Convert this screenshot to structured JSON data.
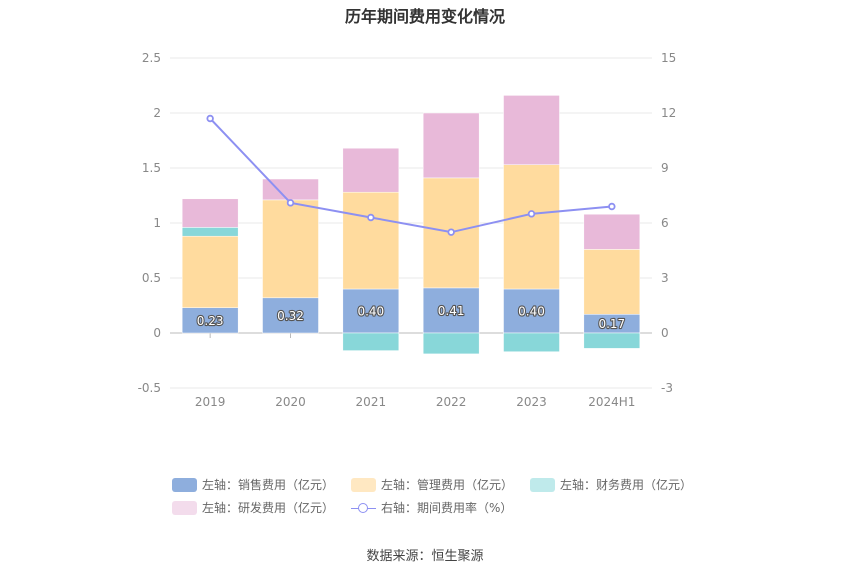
{
  "title": "历年期间费用变化情况",
  "source": "数据来源：恒生聚源",
  "legend": [
    {
      "label": "左轴：销售费用（亿元）",
      "color": "#8eaedd"
    },
    {
      "label": "左轴：管理费用（亿元）",
      "color": "#ffdb9e"
    },
    {
      "label": "左轴：财务费用（亿元）",
      "color": "#88d7d9"
    },
    {
      "label": "左轴：研发费用（亿元）",
      "color": "#e8b9d9"
    },
    {
      "label": "右轴：期间费用率（%）",
      "color": "#8d90f2"
    }
  ],
  "chart_data": {
    "type": "bar",
    "stacked": true,
    "categories": [
      "2019",
      "2020",
      "2021",
      "2022",
      "2023",
      "2024H1"
    ],
    "series": [
      {
        "name": "左轴：销售费用（亿元）",
        "axis": "left",
        "color": "#8eaedd",
        "values": [
          0.23,
          0.32,
          0.4,
          0.41,
          0.4,
          0.17
        ],
        "labels": [
          "0.23",
          "0.32",
          "0.40",
          "0.41",
          "0.40",
          "0.17"
        ]
      },
      {
        "name": "左轴：管理费用（亿元）",
        "axis": "left",
        "color": "#ffdb9e",
        "values": [
          0.65,
          0.89,
          0.88,
          1.0,
          1.13,
          0.59
        ]
      },
      {
        "name": "左轴：财务费用（亿元）",
        "axis": "left",
        "color": "#88d7d9",
        "values": [
          0.08,
          0.0,
          -0.16,
          -0.19,
          -0.17,
          -0.14
        ]
      },
      {
        "name": "左轴：研发费用（亿元）",
        "axis": "left",
        "color": "#e8b9d9",
        "values": [
          0.26,
          0.19,
          0.4,
          0.59,
          0.63,
          0.32
        ]
      },
      {
        "name": "右轴：期间费用率（%）",
        "type": "line",
        "axis": "right",
        "color": "#8d90f2",
        "values": [
          11.7,
          7.1,
          6.3,
          5.5,
          6.5,
          6.9
        ]
      }
    ],
    "left_axis": {
      "min": -0.5,
      "max": 2.5,
      "ticks": [
        "-0.5",
        "0",
        "0.5",
        "1",
        "1.5",
        "2",
        "2.5"
      ],
      "tick_values": [
        -0.5,
        0,
        0.5,
        1,
        1.5,
        2,
        2.5
      ]
    },
    "right_axis": {
      "min": -3,
      "max": 15,
      "ticks": [
        "-3",
        "0",
        "3",
        "6",
        "9",
        "12",
        "15"
      ],
      "tick_values": [
        -3,
        0,
        3,
        6,
        9,
        12,
        15
      ]
    },
    "grid": true,
    "legend_position": "bottom"
  }
}
